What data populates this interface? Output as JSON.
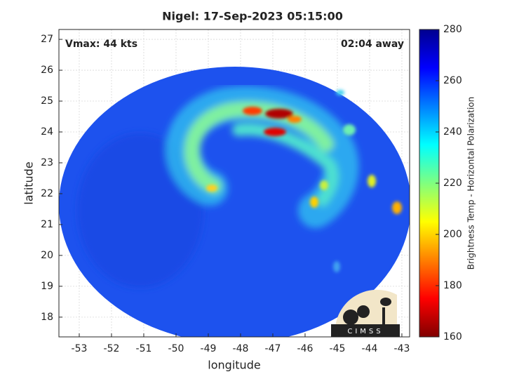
{
  "chart_data": {
    "type": "image",
    "title": "Nigel: 17-Sep-2023 05:15:00",
    "annotations": [
      "Vmax: 44 kts",
      "02:04 away"
    ],
    "xlabel": "longitude",
    "ylabel": "latitude",
    "xlim": [
      -53.63,
      -42.76
    ],
    "ylim": [
      17.36,
      27.32
    ],
    "xticks": [
      -53,
      -52,
      -51,
      -50,
      -49,
      -48,
      -47,
      -46,
      -45,
      -44,
      -43
    ],
    "yticks": [
      18,
      19,
      20,
      21,
      22,
      23,
      24,
      25,
      26,
      27
    ],
    "grid": true,
    "colorbar": {
      "label": "Brightness Temp - Horizontal Polarization",
      "clim": [
        160,
        280
      ],
      "ticks": [
        160,
        180,
        200,
        220,
        240,
        260,
        280
      ],
      "colormap": "jet"
    },
    "logo": "CIMSS"
  }
}
